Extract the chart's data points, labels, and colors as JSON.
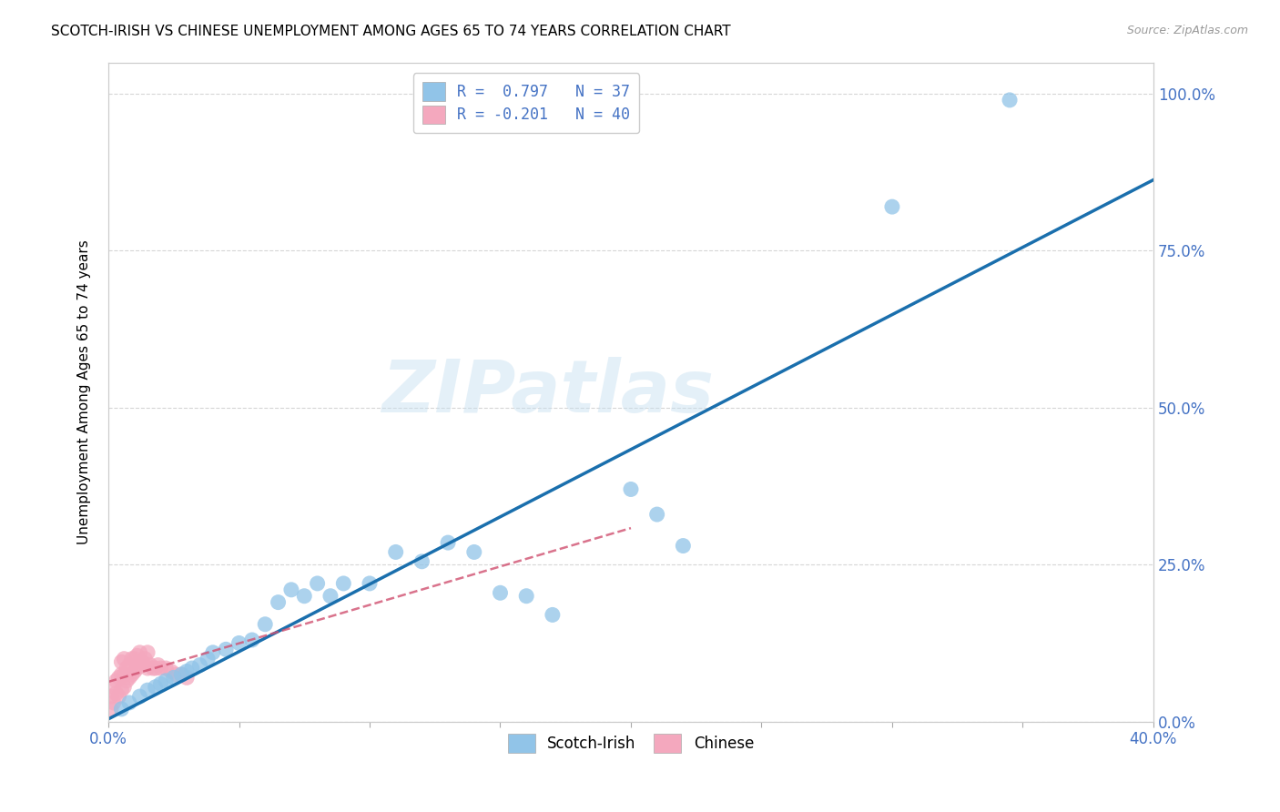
{
  "title": "SCOTCH-IRISH VS CHINESE UNEMPLOYMENT AMONG AGES 65 TO 74 YEARS CORRELATION CHART",
  "source": "Source: ZipAtlas.com",
  "ylabel": "Unemployment Among Ages 65 to 74 years",
  "watermark": "ZIPatlas",
  "x_min": 0.0,
  "x_max": 0.4,
  "y_min": 0.0,
  "y_max": 1.05,
  "x_ticks": [
    0.0,
    0.05,
    0.1,
    0.15,
    0.2,
    0.25,
    0.3,
    0.35,
    0.4
  ],
  "y_ticks": [
    0.0,
    0.25,
    0.5,
    0.75,
    1.0
  ],
  "y_tick_labels": [
    "0.0%",
    "25.0%",
    "50.0%",
    "75.0%",
    "100.0%"
  ],
  "scotch_irish_R": 0.797,
  "scotch_irish_N": 37,
  "chinese_R": -0.201,
  "chinese_N": 40,
  "scotch_irish_color": "#91c4e8",
  "scotch_irish_line_color": "#1a6fad",
  "chinese_color": "#f4a8be",
  "chinese_line_color": "#d05070",
  "scotch_irish_x": [
    0.005,
    0.008,
    0.012,
    0.015,
    0.018,
    0.02,
    0.022,
    0.025,
    0.028,
    0.03,
    0.032,
    0.035,
    0.038,
    0.04,
    0.045,
    0.05,
    0.055,
    0.06,
    0.065,
    0.07,
    0.075,
    0.08,
    0.085,
    0.09,
    0.1,
    0.11,
    0.12,
    0.13,
    0.14,
    0.15,
    0.16,
    0.17,
    0.2,
    0.21,
    0.22,
    0.3,
    0.345
  ],
  "scotch_irish_y": [
    0.02,
    0.03,
    0.04,
    0.05,
    0.055,
    0.06,
    0.065,
    0.07,
    0.075,
    0.08,
    0.085,
    0.09,
    0.1,
    0.11,
    0.115,
    0.125,
    0.13,
    0.155,
    0.19,
    0.21,
    0.2,
    0.22,
    0.2,
    0.22,
    0.22,
    0.27,
    0.255,
    0.285,
    0.27,
    0.205,
    0.2,
    0.17,
    0.37,
    0.33,
    0.28,
    0.82,
    0.99
  ],
  "chinese_x": [
    0.001,
    0.001,
    0.002,
    0.002,
    0.003,
    0.003,
    0.004,
    0.004,
    0.005,
    0.005,
    0.005,
    0.006,
    0.006,
    0.006,
    0.007,
    0.007,
    0.008,
    0.008,
    0.009,
    0.009,
    0.01,
    0.01,
    0.011,
    0.011,
    0.012,
    0.012,
    0.013,
    0.014,
    0.015,
    0.015,
    0.016,
    0.017,
    0.018,
    0.019,
    0.02,
    0.022,
    0.024,
    0.026,
    0.028,
    0.03
  ],
  "chinese_y": [
    0.02,
    0.04,
    0.03,
    0.055,
    0.045,
    0.065,
    0.04,
    0.07,
    0.05,
    0.075,
    0.095,
    0.055,
    0.075,
    0.1,
    0.065,
    0.085,
    0.07,
    0.09,
    0.075,
    0.1,
    0.08,
    0.1,
    0.085,
    0.105,
    0.09,
    0.11,
    0.095,
    0.1,
    0.085,
    0.11,
    0.09,
    0.085,
    0.085,
    0.09,
    0.085,
    0.085,
    0.08,
    0.075,
    0.075,
    0.07
  ],
  "grid_color": "#cccccc",
  "background_color": "#ffffff",
  "title_fontsize": 11,
  "tick_label_color": "#4472c4"
}
